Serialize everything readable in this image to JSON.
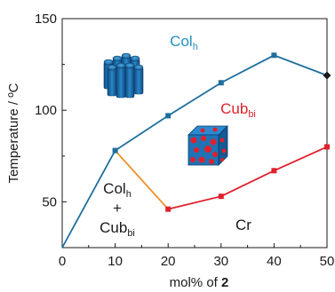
{
  "chart_data": {
    "type": "line",
    "xlabel": "mol% of 2",
    "ylabel": "Temperature / ºC",
    "xlim": [
      0,
      50
    ],
    "ylim": [
      25,
      150
    ],
    "x_ticks": [
      "0",
      "10",
      "20",
      "30",
      "40",
      "50"
    ],
    "y_ticks": [
      "50",
      "100",
      "150"
    ],
    "series": [
      {
        "color": "#1f6f9e",
        "marker": "square",
        "points": [
          [
            0,
            25
          ],
          [
            10,
            78
          ],
          [
            20,
            97
          ],
          [
            30,
            115
          ],
          [
            40,
            130
          ],
          [
            50,
            119
          ]
        ]
      },
      {
        "color": "#e0202a",
        "marker": "square",
        "points": [
          [
            20,
            46
          ],
          [
            30,
            53
          ],
          [
            40,
            67
          ],
          [
            50,
            80
          ]
        ]
      },
      {
        "color": "#f0902a",
        "marker": "none",
        "points": [
          [
            10,
            78
          ],
          [
            20,
            46
          ]
        ]
      }
    ],
    "special_points": [
      {
        "x": 50,
        "y": 119,
        "marker": "diamond",
        "color": "#1a1a1a"
      }
    ],
    "regions": [
      {
        "id": "colh",
        "main": "Col",
        "sub": "h",
        "color": "#1f8fc0"
      },
      {
        "id": "cubbi",
        "main": "Cub",
        "sub": "bi",
        "color": "#e0202a"
      },
      {
        "id": "mix",
        "lines": [
          {
            "main": "Col",
            "sub": "h"
          },
          {
            "main": "+",
            "sub": ""
          },
          {
            "main": "Cub",
            "sub": "bi"
          }
        ],
        "color": "#1a1a1a"
      },
      {
        "id": "cr",
        "main": "Cr",
        "sub": "",
        "color": "#1a1a1a"
      }
    ],
    "illustrations": [
      {
        "name": "columnar-hexagonal-illustration",
        "colors": [
          "#1f6fb0",
          "#0c3f70"
        ]
      },
      {
        "name": "bicontinuous-cubic-illustration",
        "colors": [
          "#2a8acb",
          "#e0202a"
        ]
      }
    ]
  }
}
